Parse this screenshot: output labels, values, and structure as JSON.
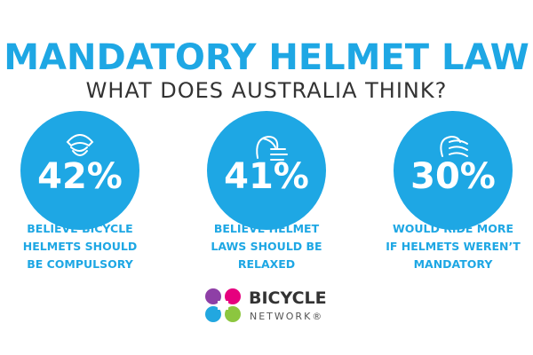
{
  "header": {
    "title": "MANDATORY HELMET LAW",
    "subtitle": "WHAT DOES AUSTRALIA THINK?"
  },
  "stats": [
    {
      "figure": "42%",
      "caption": [
        "BELIEVE BICYCLE",
        "HELMETS SHOULD",
        "BE COMPULSORY"
      ]
    },
    {
      "figure": "41%",
      "caption": [
        "BELIEVE HELMET",
        "LAWS SHOULD BE",
        "RELAXED"
      ]
    },
    {
      "figure": "30%",
      "caption": [
        "WOULD RIDE MORE",
        "IF HELMETS WEREN’T",
        "MANDATORY"
      ]
    }
  ],
  "logo": {
    "name": "BICYCLE",
    "tagline": "NETWORK®"
  }
}
